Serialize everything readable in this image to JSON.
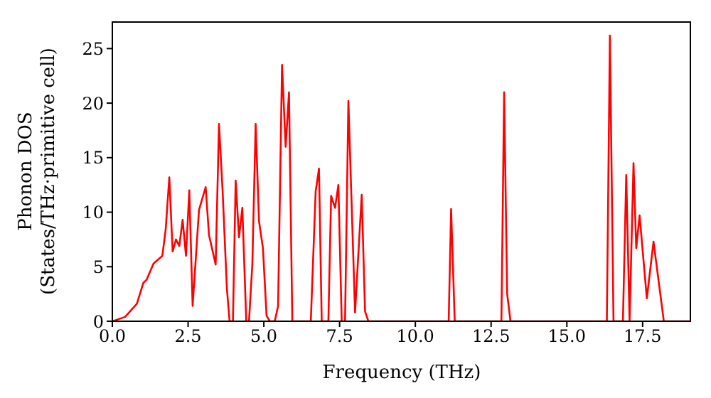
{
  "chart_data": {
    "type": "line",
    "xlabel": "Frequency (THz)",
    "ylabel": "Phonon DOS\n(States/THz·primitive cell)",
    "x": [
      0,
      0.42,
      0.81,
      1.02,
      1.13,
      1.36,
      1.65,
      1.76,
      1.88,
      1.99,
      2.1,
      2.21,
      2.32,
      2.43,
      2.54,
      2.65,
      2.86,
      3.08,
      3.19,
      3.41,
      3.52,
      3.64,
      3.78,
      3.87,
      3.98,
      4.07,
      4.18,
      4.29,
      4.42,
      4.51,
      4.62,
      4.73,
      4.84,
      4.97,
      5.09,
      5.2,
      5.36,
      5.47,
      5.6,
      5.72,
      5.83,
      5.94,
      6.55,
      6.71,
      6.82,
      6.91,
      7.13,
      7.22,
      7.35,
      7.46,
      7.57,
      7.68,
      7.79,
      8.01,
      8.23,
      8.34,
      8.45,
      11.1,
      11.18,
      11.3,
      12.84,
      12.93,
      13.03,
      13.14,
      16.32,
      16.42,
      16.54,
      16.85,
      16.96,
      17.07,
      17.2,
      17.29,
      17.4,
      17.64,
      17.86,
      18.2,
      19.1
    ],
    "series": [
      {
        "color": "#ff0000",
        "values": [
          0,
          0.4,
          1.6,
          3.5,
          3.8,
          5.3,
          6.0,
          8.4,
          13.2,
          6.4,
          7.5,
          6.9,
          9.3,
          6.0,
          12.0,
          1.4,
          10.2,
          12.3,
          7.9,
          5.2,
          18.1,
          11.9,
          3.0,
          0,
          0,
          12.9,
          7.7,
          10.4,
          0,
          0,
          5.2,
          18.1,
          9.2,
          6.7,
          0.5,
          0,
          0,
          1.4,
          23.5,
          16.0,
          21.0,
          0,
          0,
          11.9,
          14.0,
          0,
          0,
          11.5,
          10.4,
          12.5,
          0,
          0,
          20.2,
          0.8,
          11.6,
          0.9,
          0,
          0,
          10.3,
          0,
          0,
          21.0,
          2.5,
          0,
          0,
          26.2,
          0,
          0,
          13.4,
          0,
          14.5,
          6.7,
          9.7,
          2.1,
          7.3,
          0,
          0
        ]
      }
    ],
    "xlim": [
      0,
      19.1
    ],
    "ylim": [
      0,
      27.5
    ],
    "xticks": [
      {
        "value": 0,
        "label": "0.0"
      },
      {
        "value": 2.5,
        "label": "2.5"
      },
      {
        "value": 5,
        "label": "5.0"
      },
      {
        "value": 7.5,
        "label": "7.5"
      },
      {
        "value": 10,
        "label": "10.0"
      },
      {
        "value": 12.5,
        "label": "12.5"
      },
      {
        "value": 15,
        "label": "15.0"
      },
      {
        "value": 17.5,
        "label": "17.5"
      }
    ],
    "yticks": [
      0,
      5,
      10,
      15,
      20,
      25
    ],
    "grid": false,
    "legend": false,
    "marker": "none",
    "line_style": "solid"
  }
}
